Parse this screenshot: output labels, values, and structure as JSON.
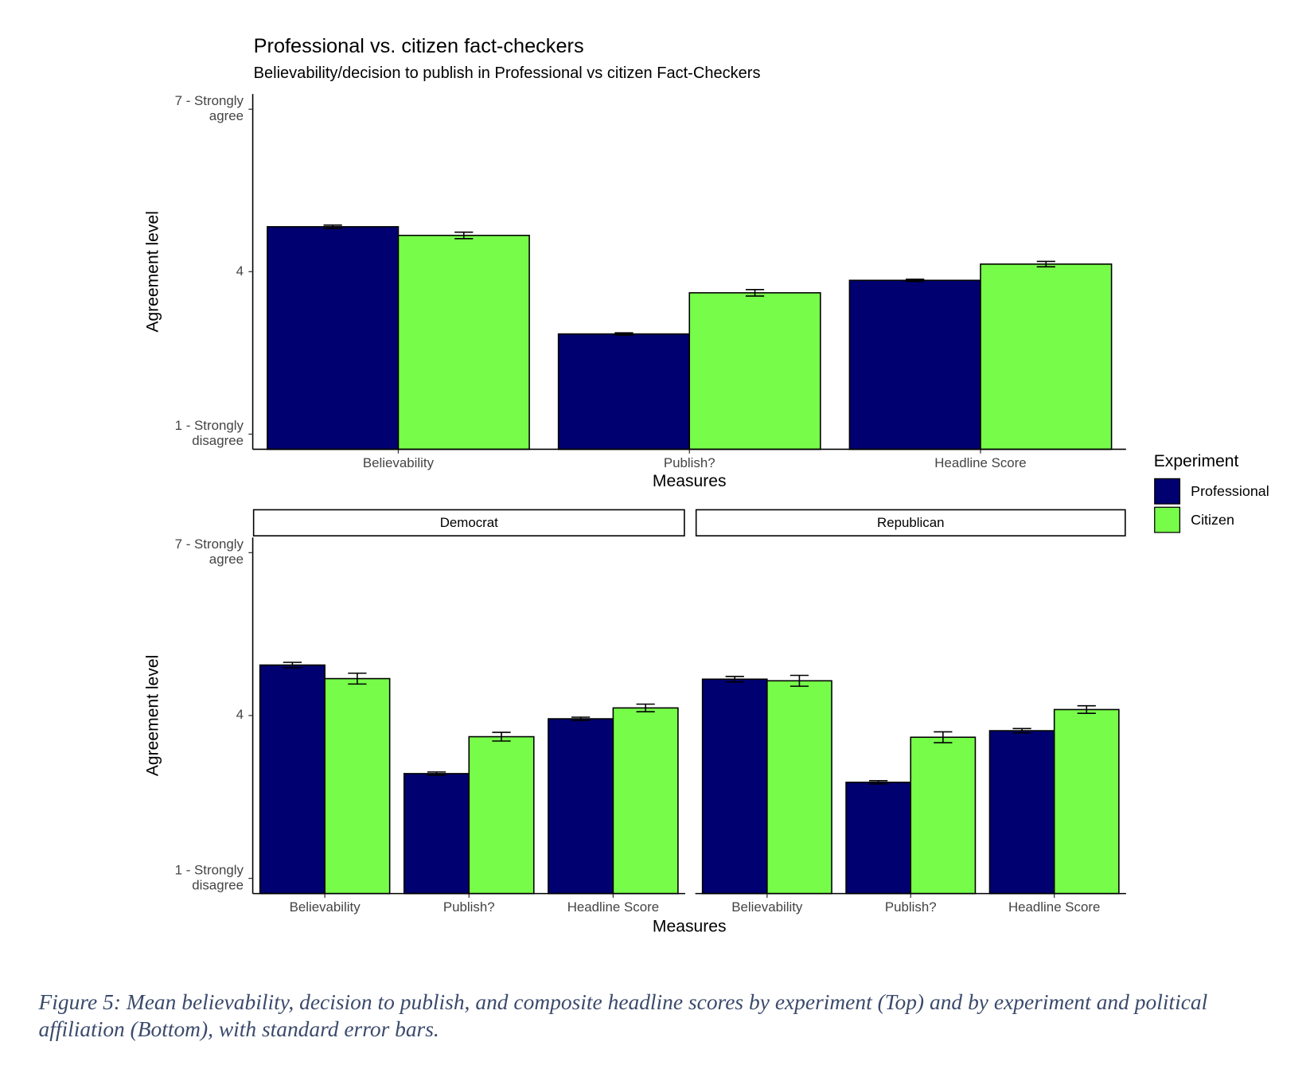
{
  "chart_data": [
    {
      "type": "bar",
      "title": "Professional vs. citizen fact-checkers",
      "subtitle": "Believability/decision to publish in Professional vs citizen Fact-Checkers",
      "x_label": "Measures",
      "y_label": "Agreement level",
      "categories": [
        "Believability",
        "Publish?",
        "Headline Score"
      ],
      "series": [
        {
          "name": "Professional",
          "color": "#000070",
          "values": [
            4.83,
            2.85,
            3.84
          ],
          "errors": [
            0.03,
            0.02,
            0.02
          ]
        },
        {
          "name": "Citizen",
          "color": "#77fc4a",
          "values": [
            4.67,
            3.61,
            4.14
          ],
          "errors": [
            0.06,
            0.06,
            0.05
          ]
        }
      ],
      "ylim": [
        0.72,
        7.28
      ],
      "yticks": [
        {
          "value": 1,
          "label": "1 - Strongly disagree"
        },
        4,
        {
          "value": 7,
          "label": "7 - Strongly agree"
        }
      ],
      "legend": {
        "title": "Experiment",
        "position": "right"
      }
    },
    {
      "type": "bar",
      "x_label": "Measures",
      "y_label": "Agreement level",
      "facets": [
        {
          "name": "Democrat",
          "categories": [
            "Believability",
            "Publish?",
            "Headline Score"
          ],
          "series": [
            {
              "color": "#000070",
              "values": [
                4.93,
                2.93,
                3.94
              ],
              "errors": [
                0.05,
                0.03,
                0.03
              ]
            },
            {
              "color": "#77fc4a",
              "values": [
                4.68,
                3.61,
                4.14
              ],
              "errors": [
                0.1,
                0.08,
                0.07
              ]
            }
          ]
        },
        {
          "name": "Republican",
          "categories": [
            "Believability",
            "Publish?",
            "Headline Score"
          ],
          "series": [
            {
              "color": "#000070",
              "values": [
                4.67,
                2.77,
                3.72
              ],
              "errors": [
                0.05,
                0.03,
                0.04
              ]
            },
            {
              "color": "#77fc4a",
              "values": [
                4.64,
                3.6,
                4.11
              ],
              "errors": [
                0.1,
                0.1,
                0.07
              ]
            }
          ]
        }
      ],
      "ylim": [
        0.72,
        7.28
      ],
      "yticks": [
        {
          "value": 1,
          "label": "1 - Strongly disagree"
        },
        4,
        {
          "value": 7,
          "label": "7 - Strongly agree"
        }
      ]
    }
  ],
  "caption": "Figure 5: Mean believability, decision to publish, and composite headline scores by experiment (Top) and by experiment and political affiliation (Bottom), with standard error bars."
}
